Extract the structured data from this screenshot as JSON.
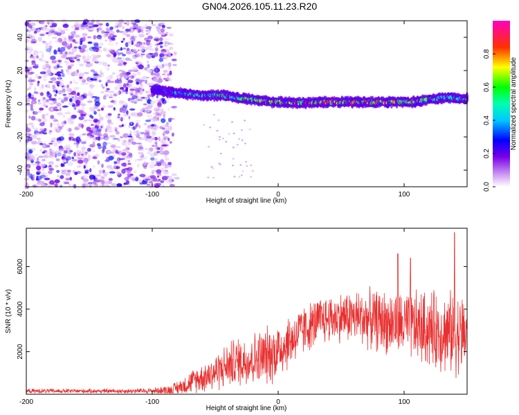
{
  "figure": {
    "title": "GN04.2026.105.11.23.R20"
  },
  "chart_data": [
    {
      "type": "heatmap",
      "title": "GN04.2026.105.11.23.R20",
      "xlabel": "Height of straight line (km)",
      "ylabel": "Frequency (Hz)",
      "xlim": [
        -200,
        150
      ],
      "ylim": [
        -50,
        50
      ],
      "xticks": [
        -200,
        -100,
        0,
        100
      ],
      "yticks": [
        -40,
        -20,
        0,
        20,
        40
      ],
      "colorbar": {
        "label": "Normalized spectral amplitude",
        "range": [
          0,
          1
        ],
        "ticks": [
          0.0,
          0.2,
          0.4,
          0.6,
          0.8
        ],
        "colors": [
          "#ffffff",
          "#8a2be2",
          "#0000ff",
          "#00ffff",
          "#00ff00",
          "#ffff00",
          "#ff0000",
          "#ff00ff"
        ]
      },
      "ridge": {
        "x": [
          -95,
          -85,
          -75,
          -65,
          -55,
          -45,
          -35,
          -25,
          -15,
          -5,
          5,
          15,
          25,
          35,
          45,
          55,
          65,
          75,
          85,
          95,
          105,
          115,
          125,
          135,
          145
        ],
        "frequency": [
          8,
          7,
          6,
          5,
          5,
          5,
          4,
          3,
          2,
          1,
          1,
          0.5,
          0.5,
          1,
          1,
          1,
          1,
          1,
          1,
          1,
          1,
          2,
          3,
          4,
          3
        ],
        "amplitude": [
          0.3,
          0.45,
          0.5,
          0.55,
          0.55,
          0.6,
          0.6,
          0.65,
          0.7,
          0.75,
          0.8,
          0.85,
          0.85,
          0.85,
          0.85,
          0.85,
          0.85,
          0.85,
          0.85,
          0.8,
          0.75,
          0.7,
          0.65,
          0.6,
          0.6
        ]
      },
      "noise_region_x": [
        -200,
        -80
      ]
    },
    {
      "type": "line",
      "xlabel": "Height of straight line (km)",
      "ylabel": "SNR (10 * v/v)",
      "xlim": [
        -200,
        150
      ],
      "ylim": [
        0,
        7800
      ],
      "xticks": [
        -200,
        -100,
        0,
        100
      ],
      "yticks": [
        2000,
        4000,
        6000
      ],
      "series": [
        {
          "name": "SNR",
          "color": "#e83030",
          "x": [
            -200,
            -180,
            -160,
            -140,
            -120,
            -100,
            -85,
            -75,
            -65,
            -55,
            -45,
            -35,
            -25,
            -15,
            -5,
            5,
            15,
            25,
            35,
            45,
            55,
            65,
            75,
            85,
            95,
            105,
            115,
            125,
            135,
            145
          ],
          "baseline": [
            150,
            150,
            150,
            150,
            150,
            160,
            200,
            400,
            700,
            900,
            1200,
            1500,
            1600,
            1700,
            1900,
            2300,
            2800,
            3200,
            3500,
            3600,
            3650,
            3600,
            3500,
            3400,
            3300,
            3200,
            3100,
            3000,
            2900,
            2800
          ],
          "spread": [
            120,
            120,
            120,
            120,
            130,
            150,
            300,
            500,
            700,
            900,
            1100,
            1300,
            1400,
            1500,
            1600,
            1500,
            1400,
            1300,
            1300,
            1300,
            1400,
            1500,
            1600,
            1700,
            1800,
            1900,
            2000,
            2100,
            2200,
            2200
          ],
          "peaks": [
            [
              95,
              6600
            ],
            [
              105,
              6400
            ],
            [
              140,
              7600
            ]
          ]
        }
      ]
    }
  ]
}
